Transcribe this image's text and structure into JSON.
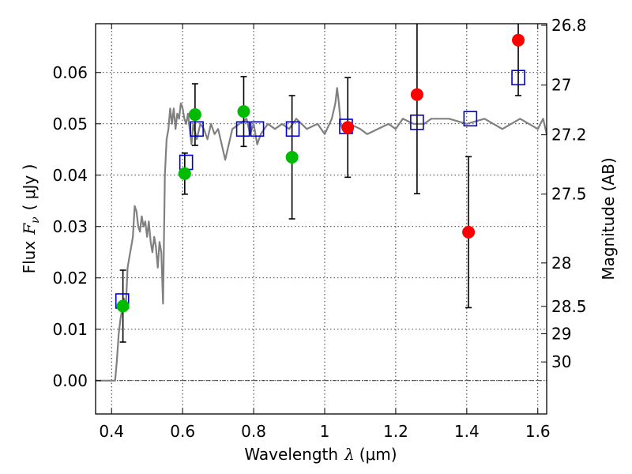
{
  "chart_data": {
    "type": "scatter",
    "xlabel_text": "Wavelength",
    "xlabel_symbol": "λ",
    "xlabel_unit": "(μm)",
    "ylabel_text": "Flux",
    "ylabel_symbol": "F",
    "ylabel_subscript": "ν",
    "ylabel_unit": "( μJy )",
    "y2label": "Magnitude (AB)",
    "xlim": [
      0.355,
      1.625
    ],
    "ylim": [
      -0.0065,
      0.0695
    ],
    "grid": true,
    "x_ticks": [
      0.4,
      0.6,
      0.8,
      1.0,
      1.2,
      1.4,
      1.6
    ],
    "x_tick_labels": [
      "0.4",
      "0.6",
      "0.8",
      "1",
      "1.2",
      "1.4",
      "1.6"
    ],
    "y_ticks": [
      0.0,
      0.01,
      0.02,
      0.03,
      0.04,
      0.05,
      0.06
    ],
    "y_tick_labels": [
      "0.00",
      "0.01",
      "0.02",
      "0.03",
      "0.04",
      "0.05",
      "0.06"
    ],
    "mag_ticks": [
      26.8,
      27,
      27.2,
      27.5,
      28,
      28.5,
      29,
      30
    ],
    "mag_tick_labels": [
      "26.8",
      "27",
      "27.2",
      "27.5",
      "28",
      "28.5",
      "29",
      "30"
    ],
    "model_sed": {
      "color": "#808080",
      "x": [
        0.355,
        0.38,
        0.4,
        0.41,
        0.415,
        0.42,
        0.425,
        0.43,
        0.435,
        0.44,
        0.445,
        0.45,
        0.455,
        0.46,
        0.465,
        0.47,
        0.475,
        0.48,
        0.485,
        0.49,
        0.495,
        0.5,
        0.505,
        0.51,
        0.515,
        0.52,
        0.525,
        0.53,
        0.535,
        0.54,
        0.545,
        0.55,
        0.555,
        0.56,
        0.565,
        0.57,
        0.575,
        0.58,
        0.585,
        0.59,
        0.595,
        0.6,
        0.605,
        0.61,
        0.615,
        0.62,
        0.625,
        0.63,
        0.64,
        0.65,
        0.66,
        0.67,
        0.68,
        0.69,
        0.7,
        0.72,
        0.74,
        0.76,
        0.78,
        0.79,
        0.8,
        0.81,
        0.82,
        0.84,
        0.86,
        0.88,
        0.9,
        0.92,
        0.95,
        0.98,
        1.0,
        1.02,
        1.03,
        1.035,
        1.04,
        1.045,
        1.05,
        1.07,
        1.1,
        1.12,
        1.15,
        1.18,
        1.2,
        1.22,
        1.25,
        1.28,
        1.3,
        1.35,
        1.4,
        1.45,
        1.5,
        1.55,
        1.6,
        1.615,
        1.625
      ],
      "y": [
        0.0,
        0.0,
        0.0,
        0.0,
        0.004,
        0.009,
        0.012,
        0.014,
        0.016,
        0.014,
        0.022,
        0.024,
        0.026,
        0.028,
        0.034,
        0.033,
        0.03,
        0.029,
        0.032,
        0.03,
        0.031,
        0.028,
        0.031,
        0.027,
        0.025,
        0.028,
        0.026,
        0.022,
        0.027,
        0.025,
        0.015,
        0.04,
        0.047,
        0.049,
        0.053,
        0.05,
        0.053,
        0.049,
        0.052,
        0.051,
        0.054,
        0.053,
        0.051,
        0.05,
        0.052,
        0.049,
        0.046,
        0.05,
        0.047,
        0.05,
        0.049,
        0.047,
        0.05,
        0.048,
        0.049,
        0.043,
        0.049,
        0.05,
        0.051,
        0.048,
        0.05,
        0.046,
        0.048,
        0.05,
        0.049,
        0.05,
        0.049,
        0.051,
        0.049,
        0.05,
        0.048,
        0.051,
        0.054,
        0.057,
        0.054,
        0.05,
        0.049,
        0.05,
        0.049,
        0.048,
        0.049,
        0.05,
        0.049,
        0.051,
        0.05,
        0.05,
        0.051,
        0.051,
        0.05,
        0.051,
        0.049,
        0.051,
        0.049,
        0.051,
        0.048
      ]
    },
    "model_points": {
      "name": "",
      "color": "#0000cc",
      "x": [
        0.43,
        0.61,
        0.64,
        0.77,
        0.81,
        0.91,
        1.06,
        1.26,
        1.41,
        1.545
      ],
      "y": [
        0.0155,
        0.0425,
        0.049,
        0.049,
        0.049,
        0.049,
        0.0495,
        0.0503,
        0.051,
        0.059
      ]
    },
    "observed_green": {
      "color": "#00bb00",
      "x": [
        0.432,
        0.606,
        0.635,
        0.772,
        0.908
      ],
      "y": [
        0.0145,
        0.0403,
        0.0518,
        0.0524,
        0.0435
      ],
      "err": [
        0.007,
        0.004,
        0.006,
        0.0068,
        0.012
      ]
    },
    "observed_red": {
      "color": "#ff0000",
      "x": [
        1.065,
        1.26,
        1.405,
        1.545
      ],
      "y": [
        0.0493,
        0.0557,
        0.0289,
        0.0663
      ],
      "err": [
        0.0097,
        0.0193,
        0.0147,
        0.0108
      ]
    }
  }
}
